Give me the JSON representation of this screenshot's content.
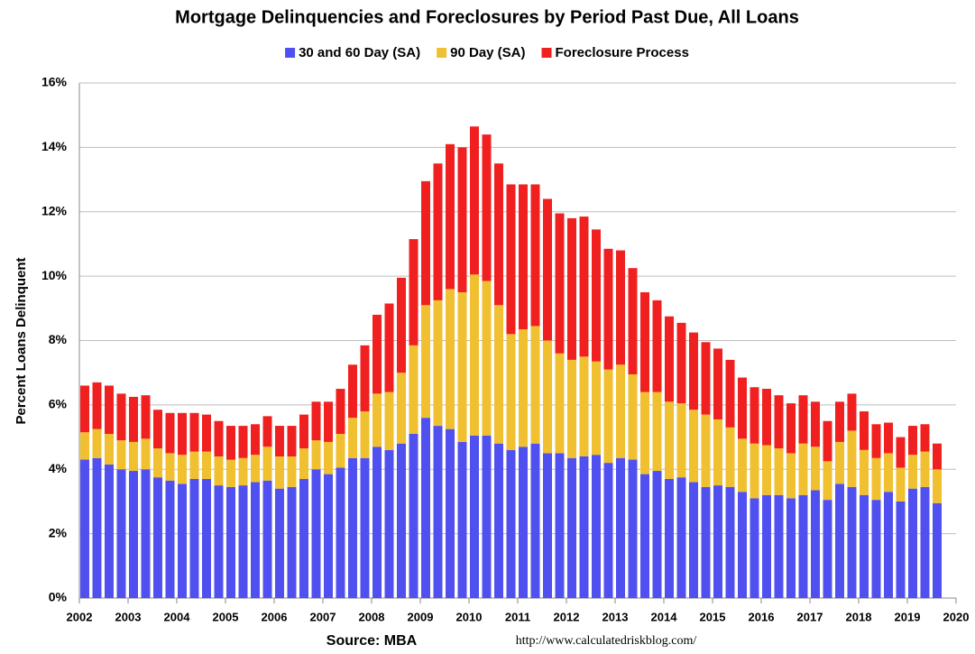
{
  "chart_data": {
    "type": "stacked-bar",
    "title": "Mortgage Delinquencies and Foreclosures by Period Past Due, All Loans",
    "y_label": "Percent Loans Delinquent",
    "source": "Source: MBA",
    "url": "http://www.calculatedriskblog.com/",
    "xlim": [
      2002,
      2020
    ],
    "xticks": [
      2002,
      2003,
      2004,
      2005,
      2006,
      2007,
      2008,
      2009,
      2010,
      2011,
      2012,
      2013,
      2014,
      2015,
      2016,
      2017,
      2018,
      2019,
      2020
    ],
    "ylim": [
      0,
      16
    ],
    "yticks": [
      {
        "value": 0,
        "label": "0%"
      },
      {
        "value": 2,
        "label": "2%"
      },
      {
        "value": 4,
        "label": "4%"
      },
      {
        "value": 6,
        "label": "6%"
      },
      {
        "value": 8,
        "label": "8%"
      },
      {
        "value": 10,
        "label": "10%"
      },
      {
        "value": 12,
        "label": "12%"
      },
      {
        "value": 14,
        "label": "14%"
      },
      {
        "value": 16,
        "label": "16%"
      }
    ],
    "grid": true,
    "x": [
      2002,
      2002.25,
      2002.5,
      2002.75,
      2003,
      2003.25,
      2003.5,
      2003.75,
      2004,
      2004.25,
      2004.5,
      2004.75,
      2005,
      2005.25,
      2005.5,
      2005.75,
      2006,
      2006.25,
      2006.5,
      2006.75,
      2007,
      2007.25,
      2007.5,
      2007.75,
      2008,
      2008.25,
      2008.5,
      2008.75,
      2009,
      2009.25,
      2009.5,
      2009.75,
      2010,
      2010.25,
      2010.5,
      2010.75,
      2011,
      2011.25,
      2011.5,
      2011.75,
      2012,
      2012.25,
      2012.5,
      2012.75,
      2013,
      2013.25,
      2013.5,
      2013.75,
      2014,
      2014.25,
      2014.5,
      2014.75,
      2015,
      2015.25,
      2015.5,
      2015.75,
      2016,
      2016.25,
      2016.5,
      2016.75,
      2017,
      2017.25,
      2017.5,
      2017.75,
      2018,
      2018.25,
      2018.5,
      2018.75,
      2019,
      2019.25,
      2019.5
    ],
    "series": [
      {
        "name": "30 and 60 Day (SA)",
        "color": "#5050f0",
        "values": [
          4.3,
          4.35,
          4.15,
          4.0,
          3.95,
          4.0,
          3.75,
          3.65,
          3.55,
          3.7,
          3.7,
          3.5,
          3.45,
          3.5,
          3.6,
          3.65,
          3.4,
          3.45,
          3.7,
          4.0,
          3.85,
          4.05,
          4.35,
          4.35,
          4.7,
          4.6,
          4.8,
          5.1,
          5.6,
          5.35,
          5.25,
          4.85,
          5.05,
          5.05,
          4.8,
          4.6,
          4.7,
          4.8,
          4.5,
          4.5,
          4.35,
          4.4,
          4.45,
          4.2,
          4.35,
          4.3,
          3.85,
          3.95,
          3.7,
          3.75,
          3.6,
          3.45,
          3.5,
          3.45,
          3.3,
          3.1,
          3.2,
          3.2,
          3.1,
          3.2,
          3.35,
          3.05,
          3.55,
          3.45,
          3.2,
          3.05,
          3.3,
          3.0,
          3.4,
          3.45,
          2.95
        ]
      },
      {
        "name": "90 Day (SA)",
        "color": "#f0c030",
        "values": [
          0.85,
          0.9,
          0.95,
          0.9,
          0.9,
          0.95,
          0.9,
          0.85,
          0.9,
          0.85,
          0.85,
          0.9,
          0.85,
          0.85,
          0.85,
          1.05,
          1.0,
          0.95,
          0.95,
          0.9,
          1.0,
          1.05,
          1.25,
          1.45,
          1.65,
          1.8,
          2.2,
          2.75,
          3.5,
          3.9,
          4.35,
          4.65,
          5.0,
          4.8,
          4.3,
          3.6,
          3.65,
          3.65,
          3.5,
          3.1,
          3.05,
          3.1,
          2.9,
          2.9,
          2.9,
          2.65,
          2.55,
          2.45,
          2.4,
          2.3,
          2.25,
          2.25,
          2.05,
          1.85,
          1.65,
          1.7,
          1.55,
          1.45,
          1.4,
          1.6,
          1.35,
          1.2,
          1.3,
          1.75,
          1.4,
          1.3,
          1.2,
          1.05,
          1.05,
          1.1,
          1.05
        ]
      },
      {
        "name": "Foreclosure Process",
        "color": "#f02020",
        "values": [
          1.45,
          1.45,
          1.5,
          1.45,
          1.4,
          1.35,
          1.2,
          1.25,
          1.3,
          1.2,
          1.15,
          1.1,
          1.05,
          1.0,
          0.95,
          0.95,
          0.95,
          0.95,
          1.05,
          1.2,
          1.25,
          1.4,
          1.65,
          2.05,
          2.45,
          2.75,
          2.95,
          3.3,
          3.85,
          4.25,
          4.5,
          4.5,
          4.6,
          4.55,
          4.4,
          4.65,
          4.5,
          4.4,
          4.4,
          4.35,
          4.4,
          4.35,
          4.1,
          3.75,
          3.55,
          3.3,
          3.1,
          2.85,
          2.65,
          2.5,
          2.4,
          2.25,
          2.2,
          2.1,
          1.9,
          1.75,
          1.75,
          1.65,
          1.55,
          1.5,
          1.4,
          1.25,
          1.25,
          1.15,
          1.2,
          1.05,
          0.95,
          0.95,
          0.9,
          0.85,
          0.8
        ]
      }
    ]
  }
}
